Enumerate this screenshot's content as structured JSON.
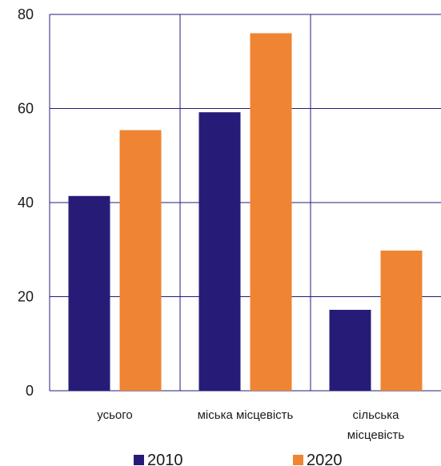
{
  "chart_data": {
    "type": "bar",
    "categories": [
      [
        "усього"
      ],
      [
        "міська місцевість"
      ],
      [
        "сільська",
        "місцевість"
      ]
    ],
    "series": [
      {
        "name": "2010",
        "color": "#261c78",
        "values": [
          41.4,
          59.2,
          17.2
        ]
      },
      {
        "name": "2020",
        "color": "#ef8433",
        "values": [
          55.4,
          76.0,
          29.8
        ]
      }
    ],
    "y_ticks": [
      "0",
      "20",
      "40",
      "60",
      "80"
    ],
    "ylim": [
      0,
      80
    ],
    "grid": true,
    "legend_position": "bottom",
    "title": "",
    "xlabel": "",
    "ylabel": ""
  },
  "colors": {
    "grid": "#261c78",
    "text": "#1a1a1a"
  }
}
